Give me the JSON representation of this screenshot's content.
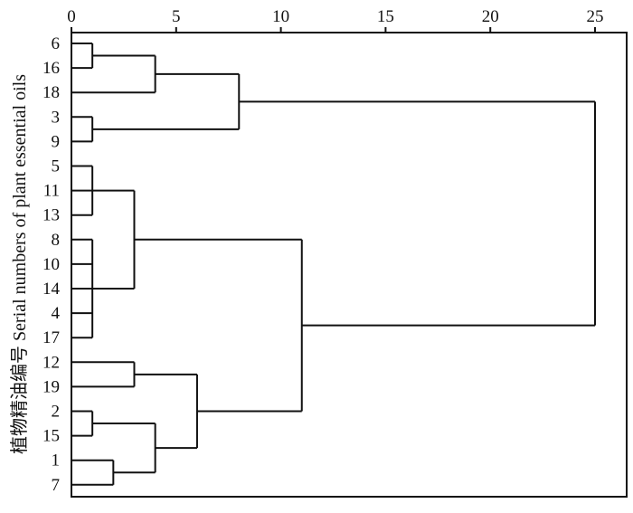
{
  "chart_data": {
    "type": "dendrogram",
    "ylabel": "植物精油编号 Serial numbers of plant essential oils",
    "xlim": [
      0,
      26
    ],
    "x_ticks": [
      0,
      5,
      10,
      15,
      20,
      25
    ],
    "leaves": [
      "6",
      "16",
      "18",
      "3",
      "9",
      "5",
      "11",
      "13",
      "8",
      "10",
      "14",
      "4",
      "17",
      "12",
      "19",
      "2",
      "15",
      "1",
      "7"
    ],
    "merges": [
      {
        "children": [
          "6",
          "16"
        ],
        "height": 1
      },
      {
        "children": [
          "3",
          "9"
        ],
        "height": 1
      },
      {
        "children": [
          "6-16",
          "18"
        ],
        "height": 4
      },
      {
        "children": [
          "6-16-18",
          "3-9"
        ],
        "height": 8
      },
      {
        "children": [
          "5",
          "11",
          "13"
        ],
        "height": 1
      },
      {
        "children": [
          "8",
          "10",
          "14",
          "4",
          "17"
        ],
        "height": 1
      },
      {
        "children": [
          "5-11-13",
          "8-10-14-4-17"
        ],
        "height": 3
      },
      {
        "children": [
          "12",
          "19"
        ],
        "height": 3
      },
      {
        "children": [
          "2",
          "15"
        ],
        "height": 1
      },
      {
        "children": [
          "1",
          "7"
        ],
        "height": 2
      },
      {
        "children": [
          "2-15",
          "1-7"
        ],
        "height": 4
      },
      {
        "children": [
          "12-19",
          "2-15-1-7"
        ],
        "height": 6
      },
      {
        "children": [
          "5…17",
          "12…7"
        ],
        "height": 11
      },
      {
        "children": [
          "6…9",
          "5…7"
        ],
        "height": 25
      }
    ],
    "grid": false
  }
}
